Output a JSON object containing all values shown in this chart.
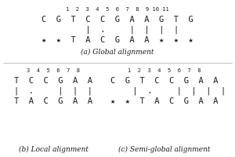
{
  "background_color": "#ffffff",
  "text_color": "#1a1a1a",
  "global_nums": "1  2  3  4  5  6  7  8  9 10 11",
  "global_seq1": "C  G  T  C  C  G  A  A  G  T  G",
  "global_match": "      |  .     |  |  |  |",
  "global_seq2": "★  ★  T  A  C  G  A  A  ★  ★  ★",
  "global_label": "(a) Global alignment",
  "local_nums": "3  4  5  6  7  8",
  "local_seq1": "T  C  C  G  A  A",
  "local_match": "|  .     |  |  |",
  "local_seq2": "T  A  C  G  A  A",
  "local_label": "(b) Local alignment",
  "semi_nums": "1  2  3  4  5  6  7  8",
  "semi_seq1": "C  G  T  C  C  G  A  A",
  "semi_match": "      |  .     |  |  |  |",
  "semi_seq2": "★  ★  T  A  C  G  A  A",
  "semi_label": "(c) Semi-global alignment",
  "fs_num": 5.0,
  "fs_seq": 7.5,
  "fs_lab": 6.5
}
